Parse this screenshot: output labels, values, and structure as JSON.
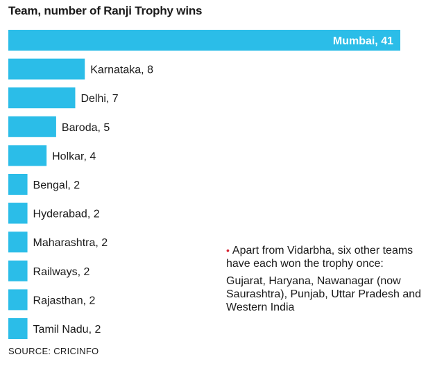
{
  "chart_data": {
    "type": "bar",
    "orientation": "horizontal",
    "title": "Team, number of Ranji Trophy wins",
    "categories": [
      "Mumbai",
      "Karnataka",
      "Delhi",
      "Baroda",
      "Holkar",
      "Bengal",
      "Hyderabad",
      "Maharashtra",
      "Railways",
      "Rajasthan",
      "Tamil Nadu"
    ],
    "values": [
      41,
      8,
      7,
      5,
      4,
      2,
      2,
      2,
      2,
      2,
      2
    ],
    "data_labels": [
      "Mumbai, 41",
      "Karnataka, 8",
      "Delhi, 7",
      "Baroda, 5",
      "Holkar, 4",
      "Bengal, 2",
      "Hyderabad, 2",
      "Maharashtra, 2",
      "Railways, 2",
      "Rajasthan, 2",
      "Tamil Nadu, 2"
    ],
    "bar_color": "#2bbde8",
    "grid": false,
    "legend": "none"
  },
  "note": {
    "bullet": "•",
    "lead": "Apart from Vidarbha, six other teams have each won the trophy once:",
    "list": "Gujarat, Haryana, Nawanagar (now Saurashtra), Punjab, Uttar Pradesh and Western India"
  },
  "source": "SOURCE: CRICINFO",
  "colors": {
    "bar": "#2bbde8",
    "bullet": "#d6202f",
    "text": "#1a1a1a"
  }
}
